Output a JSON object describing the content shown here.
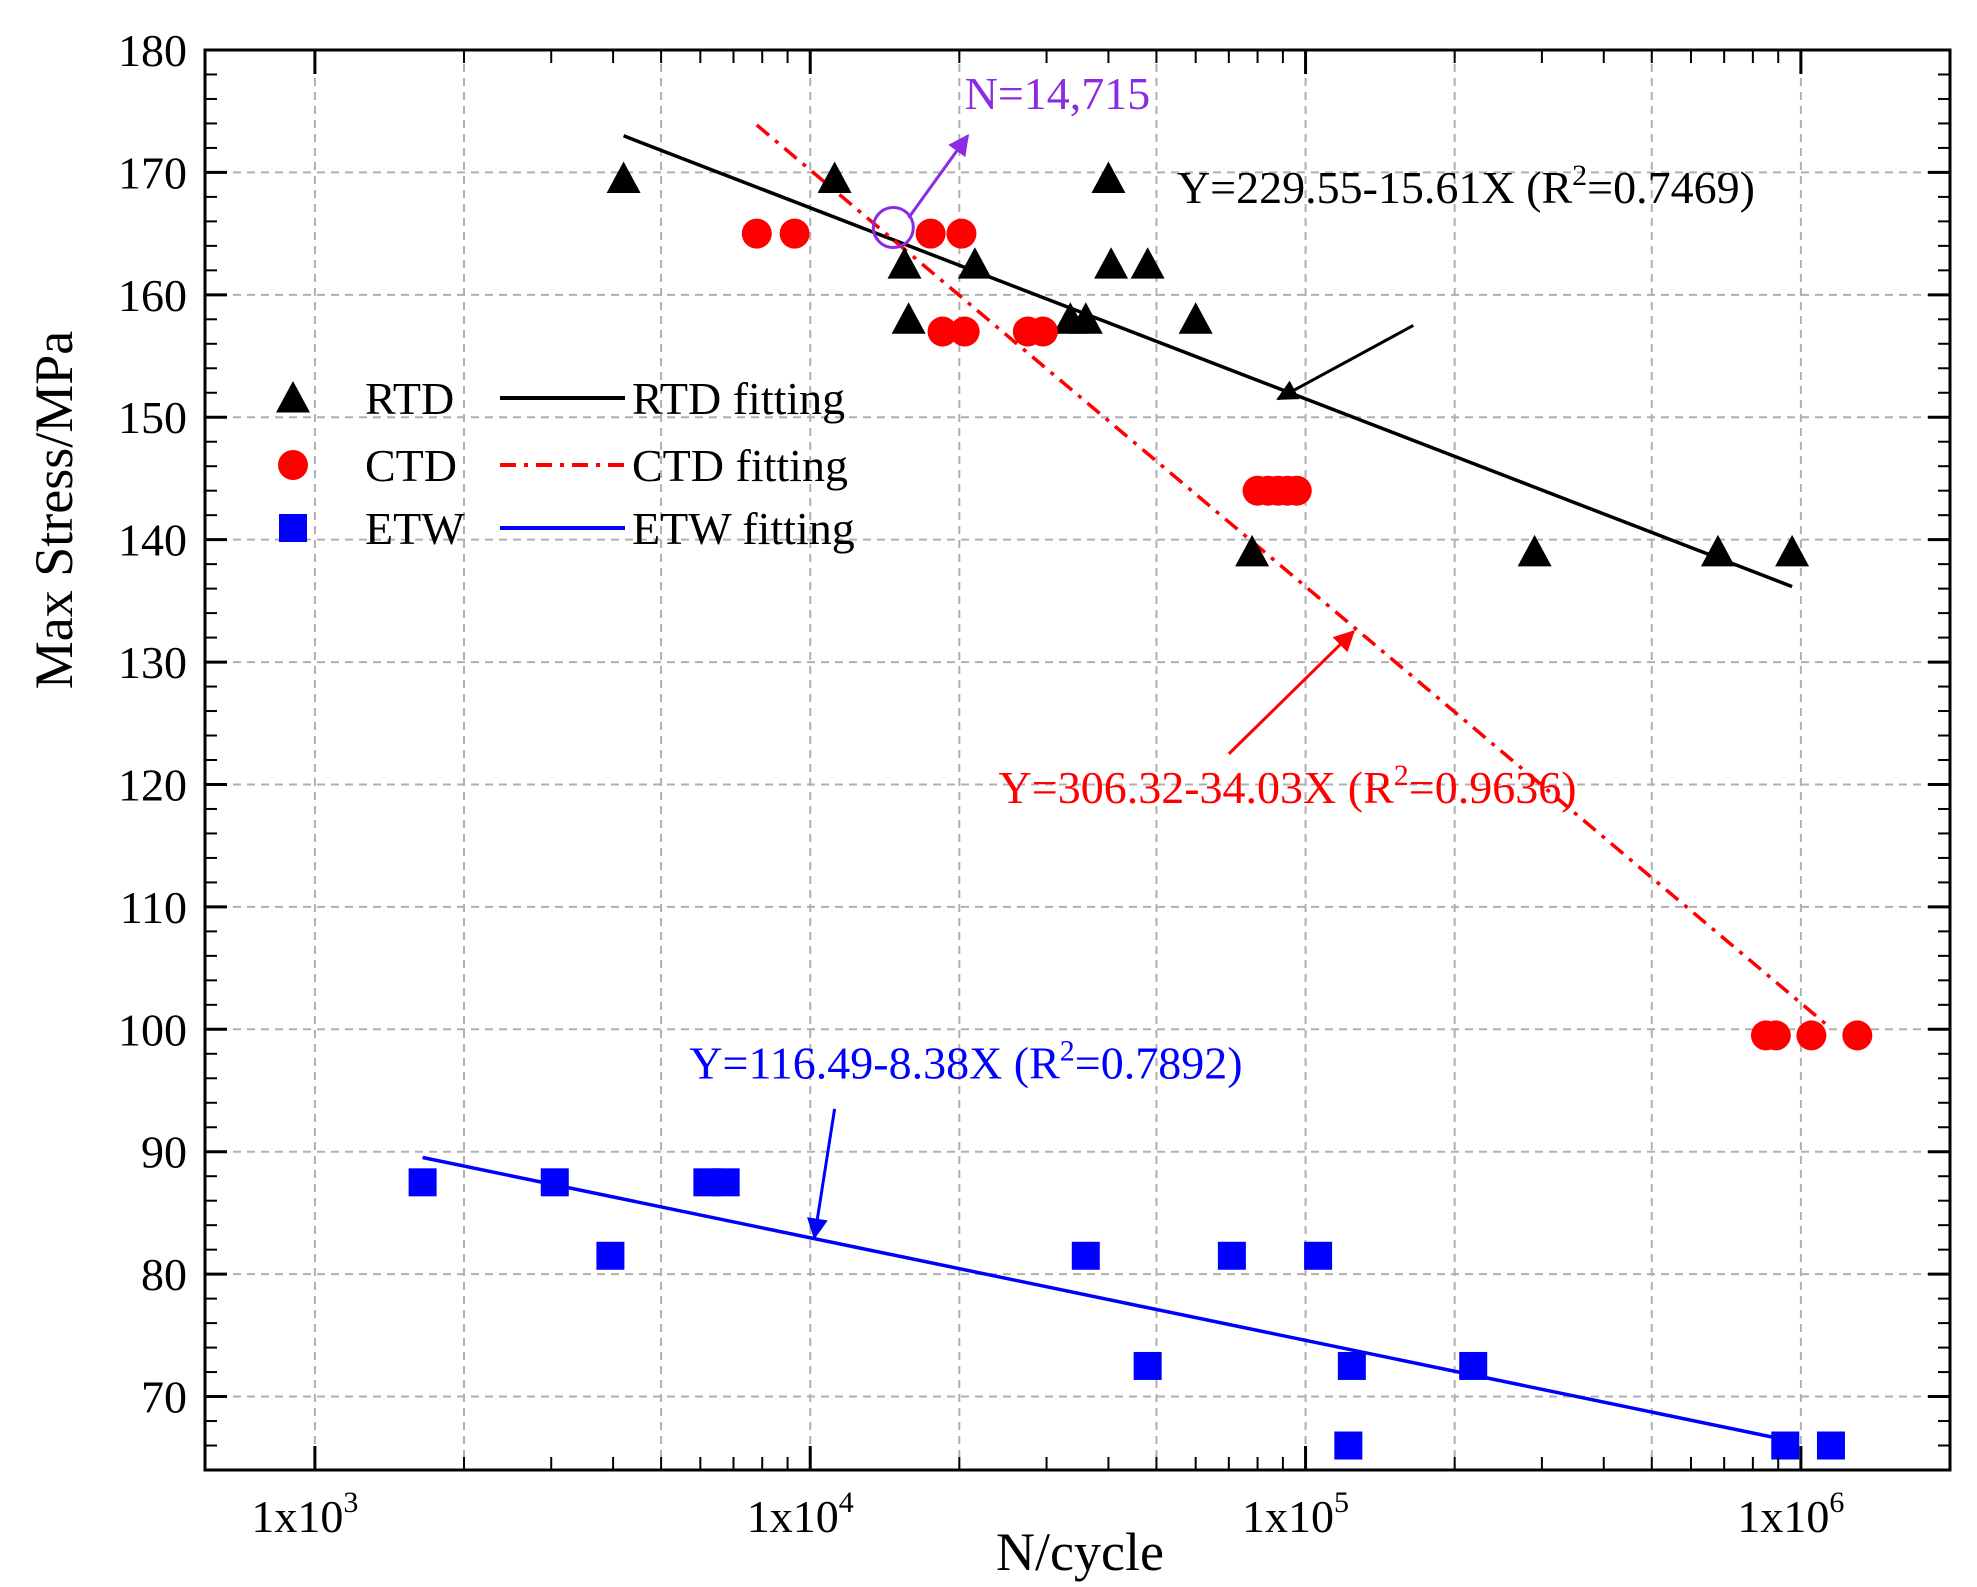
{
  "chart_data": {
    "type": "scatter",
    "xlabel": "N/cycle",
    "ylabel": "Max Stress/MPa",
    "xscale": "log",
    "xlim": [
      600,
      2000000
    ],
    "ylim": [
      64,
      180
    ],
    "xticks": [
      {
        "value": 1000,
        "label": "1x10",
        "exp": "3"
      },
      {
        "value": 10000,
        "label": "1x10",
        "exp": "4"
      },
      {
        "value": 100000,
        "label": "1x10",
        "exp": "5"
      },
      {
        "value": 1000000,
        "label": "1x10",
        "exp": "6"
      }
    ],
    "yticks": [
      70,
      80,
      90,
      100,
      110,
      120,
      130,
      140,
      150,
      160,
      170,
      180
    ],
    "grid": true,
    "legend_position": "upper-left",
    "series": [
      {
        "name": "RTD",
        "marker": "triangle",
        "color": "#000000",
        "points": [
          {
            "x": 4200,
            "y": 169.5
          },
          {
            "x": 11200,
            "y": 169.5
          },
          {
            "x": 15500,
            "y": 162.5
          },
          {
            "x": 15800,
            "y": 158
          },
          {
            "x": 21500,
            "y": 162.5
          },
          {
            "x": 33500,
            "y": 158
          },
          {
            "x": 36000,
            "y": 158
          },
          {
            "x": 40000,
            "y": 169.5
          },
          {
            "x": 40500,
            "y": 162.5
          },
          {
            "x": 48000,
            "y": 162.5
          },
          {
            "x": 60000,
            "y": 158
          },
          {
            "x": 78000,
            "y": 139
          },
          {
            "x": 290000,
            "y": 139
          },
          {
            "x": 680000,
            "y": 139
          },
          {
            "x": 960000,
            "y": 139
          }
        ]
      },
      {
        "name": "CTD",
        "marker": "circle",
        "color": "#ff0000",
        "points": [
          {
            "x": 7800,
            "y": 165
          },
          {
            "x": 9300,
            "y": 165
          },
          {
            "x": 17500,
            "y": 165
          },
          {
            "x": 18500,
            "y": 157
          },
          {
            "x": 20200,
            "y": 165
          },
          {
            "x": 20500,
            "y": 157
          },
          {
            "x": 27500,
            "y": 157
          },
          {
            "x": 29500,
            "y": 157
          },
          {
            "x": 80000,
            "y": 144
          },
          {
            "x": 84000,
            "y": 144
          },
          {
            "x": 88000,
            "y": 144
          },
          {
            "x": 92000,
            "y": 144
          },
          {
            "x": 96000,
            "y": 144
          },
          {
            "x": 850000,
            "y": 99.5
          },
          {
            "x": 890000,
            "y": 99.5
          },
          {
            "x": 1050000,
            "y": 99.5
          },
          {
            "x": 1300000,
            "y": 99.5
          }
        ]
      },
      {
        "name": "ETW",
        "marker": "square",
        "color": "#0000ff",
        "points": [
          {
            "x": 1650,
            "y": 87.5
          },
          {
            "x": 3050,
            "y": 87.5
          },
          {
            "x": 3950,
            "y": 81.5
          },
          {
            "x": 6200,
            "y": 87.5
          },
          {
            "x": 6750,
            "y": 87.5
          },
          {
            "x": 36000,
            "y": 81.5
          },
          {
            "x": 48000,
            "y": 72.5
          },
          {
            "x": 71000,
            "y": 81.5
          },
          {
            "x": 106000,
            "y": 81.5
          },
          {
            "x": 122000,
            "y": 66
          },
          {
            "x": 124000,
            "y": 72.5
          },
          {
            "x": 218000,
            "y": 72.5
          },
          {
            "x": 930000,
            "y": 66
          },
          {
            "x": 1150000,
            "y": 66
          }
        ]
      }
    ],
    "fits": [
      {
        "name": "RTD fitting",
        "color": "#000000",
        "style": "solid",
        "intercept": 229.55,
        "slope": -15.61,
        "x_range": [
          4200,
          960000
        ],
        "equation": "Y=229.55-15.61X (R",
        "r2": "=0.7469)",
        "label_anchor": {
          "x": 55000,
          "y": 167.5
        },
        "arrow_from": {
          "x": 165000,
          "y": 157.5
        },
        "arrow_to": {
          "x": 88000,
          "y": 151.5
        }
      },
      {
        "name": "CTD fitting",
        "color": "#ff0000",
        "style": "dashdot",
        "intercept": 306.32,
        "slope": -34.03,
        "x_range": [
          7800,
          1150000
        ],
        "equation": "Y=306.32-34.03X (R",
        "r2": "=0.9636)",
        "label_anchor": {
          "x": 24000,
          "y": 118.5
        },
        "arrow_from": {
          "x": 70000,
          "y": 122.5
        },
        "arrow_to": {
          "x": 125000,
          "y": 132.5
        }
      },
      {
        "name": "ETW fitting",
        "color": "#0000ff",
        "style": "solid",
        "intercept": 116.49,
        "slope": -8.38,
        "x_range": [
          1650,
          930000
        ],
        "equation": "Y=116.49-8.38X (R",
        "r2": "=0.7892)",
        "label_anchor": {
          "x": 5700,
          "y": 96
        },
        "arrow_from": {
          "x": 11200,
          "y": 93.5
        },
        "arrow_to": {
          "x": 10200,
          "y": 83
        }
      }
    ],
    "annotations": [
      {
        "text": "N=14,715",
        "color": "#8b2be2",
        "point": {
          "x": 14715,
          "y": 165.5
        },
        "label_anchor": {
          "x": 20500,
          "y": 175.2
        },
        "arrow_from": {
          "x": 15800,
          "y": 166.3
        },
        "arrow_to": {
          "x": 20800,
          "y": 173
        }
      }
    ],
    "legend": [
      {
        "series": "RTD",
        "label": "RTD"
      },
      {
        "series": "RTD fitting",
        "label": "RTD fitting"
      },
      {
        "series": "CTD",
        "label": "CTD"
      },
      {
        "series": "CTD fitting",
        "label": "CTD fitting"
      },
      {
        "series": "ETW",
        "label": "ETW"
      },
      {
        "series": "ETW fitting",
        "label": "ETW fitting"
      }
    ]
  }
}
